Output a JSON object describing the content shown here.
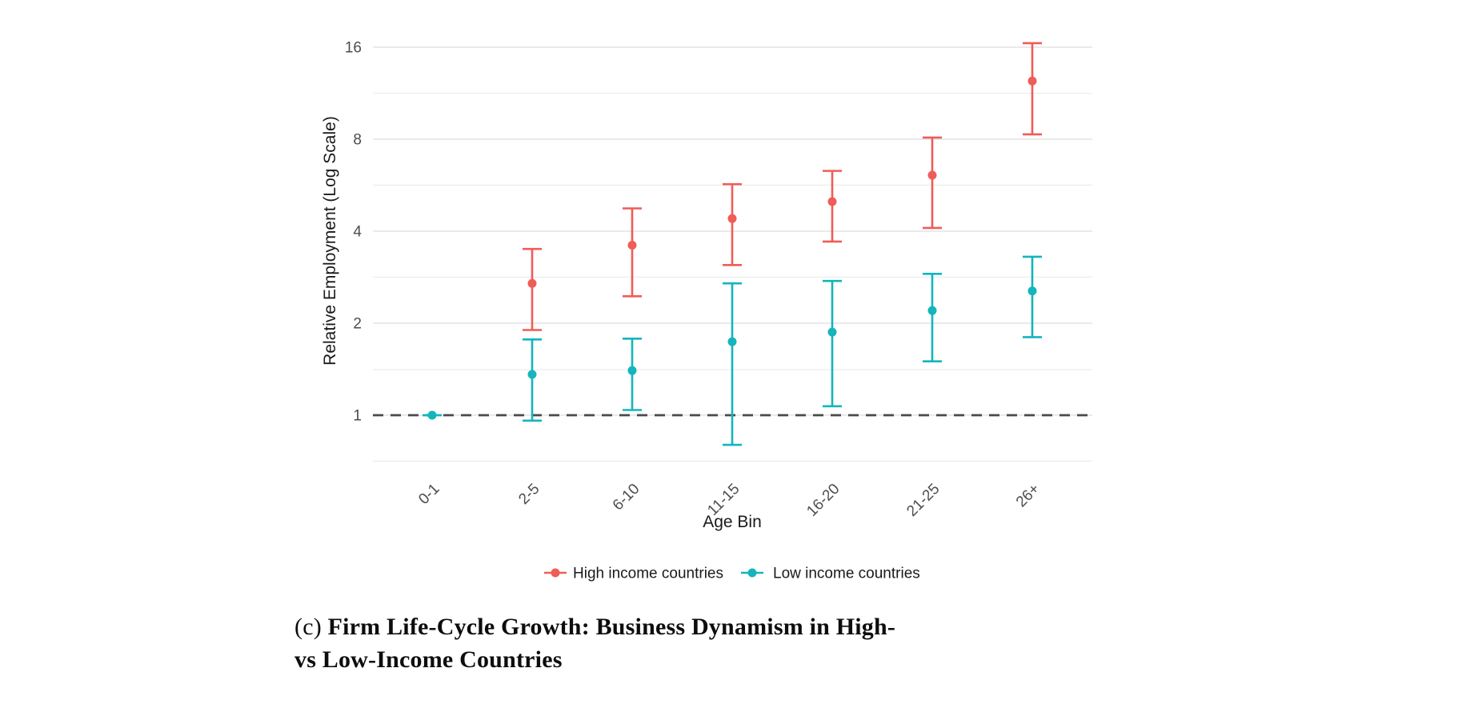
{
  "figure": {
    "y_axis": {
      "title": "Relative Employment (Log Scale)",
      "tick_labels": [
        "16",
        "8",
        "4",
        "2",
        "1"
      ]
    },
    "x_axis": {
      "title": "Age Bin",
      "tick_labels": [
        "0-1",
        "2-5",
        "6-10",
        "11-15",
        "16-20",
        "21-25",
        "26+"
      ]
    },
    "legend": {
      "items": [
        {
          "label": "High income countries",
          "color": "#F05C57"
        },
        {
          "label": "Low income countries",
          "color": "#14B5BC"
        }
      ],
      "position": "bottom"
    }
  },
  "chart_data": {
    "type": "scatter",
    "subtype": "pointrange-errorbar",
    "categories": [
      "0-1",
      "2-5",
      "6-10",
      "11-15",
      "16-20",
      "21-25",
      "26+"
    ],
    "series": [
      {
        "name": "High income countries",
        "color": "#F05C57",
        "values": [
          null,
          2.7,
          3.6,
          4.4,
          5.0,
          6.1,
          12.4
        ],
        "ci_low": [
          null,
          1.9,
          2.45,
          3.1,
          3.7,
          4.1,
          8.3
        ],
        "ci_high": [
          null,
          3.5,
          4.75,
          5.7,
          6.3,
          8.1,
          16.5
        ]
      },
      {
        "name": "Low income countries",
        "color": "#14B5BC",
        "values": [
          1.0,
          1.36,
          1.4,
          1.74,
          1.87,
          2.2,
          2.55
        ],
        "ci_low": [
          1.0,
          0.96,
          1.04,
          0.8,
          1.07,
          1.5,
          1.8
        ],
        "ci_high": [
          1.0,
          1.77,
          1.78,
          2.7,
          2.75,
          2.9,
          3.3
        ]
      }
    ],
    "title": "",
    "xlabel": "Age Bin",
    "ylabel": "Relative Employment (Log Scale)",
    "yscale": "log2",
    "ylim": [
      0.62,
      17.5
    ],
    "yticks": [
      16,
      8,
      4,
      2,
      1
    ],
    "minor_gridlines": [
      11.31,
      5.66,
      2.83,
      1.41,
      0.707
    ],
    "reference_line_y": 1,
    "grid": "horizontal",
    "legend_position": "bottom"
  },
  "caption": {
    "prefix": "(c)",
    "line1": "Firm Life-Cycle Growth: Business Dynamism in High-",
    "line2": "vs Low-Income Countries"
  },
  "colors": {
    "high_series": "#F05C57",
    "low_series": "#14B5BC",
    "major_gridline": "#E3E3E3",
    "minor_gridline": "#ECECEC",
    "reference_dash": "#4A4A4A",
    "tick_label": "#4D4D4D",
    "axis_title": "#1A1A1A",
    "legend_text": "#1A1A1A",
    "background": "#FFFFFF"
  }
}
